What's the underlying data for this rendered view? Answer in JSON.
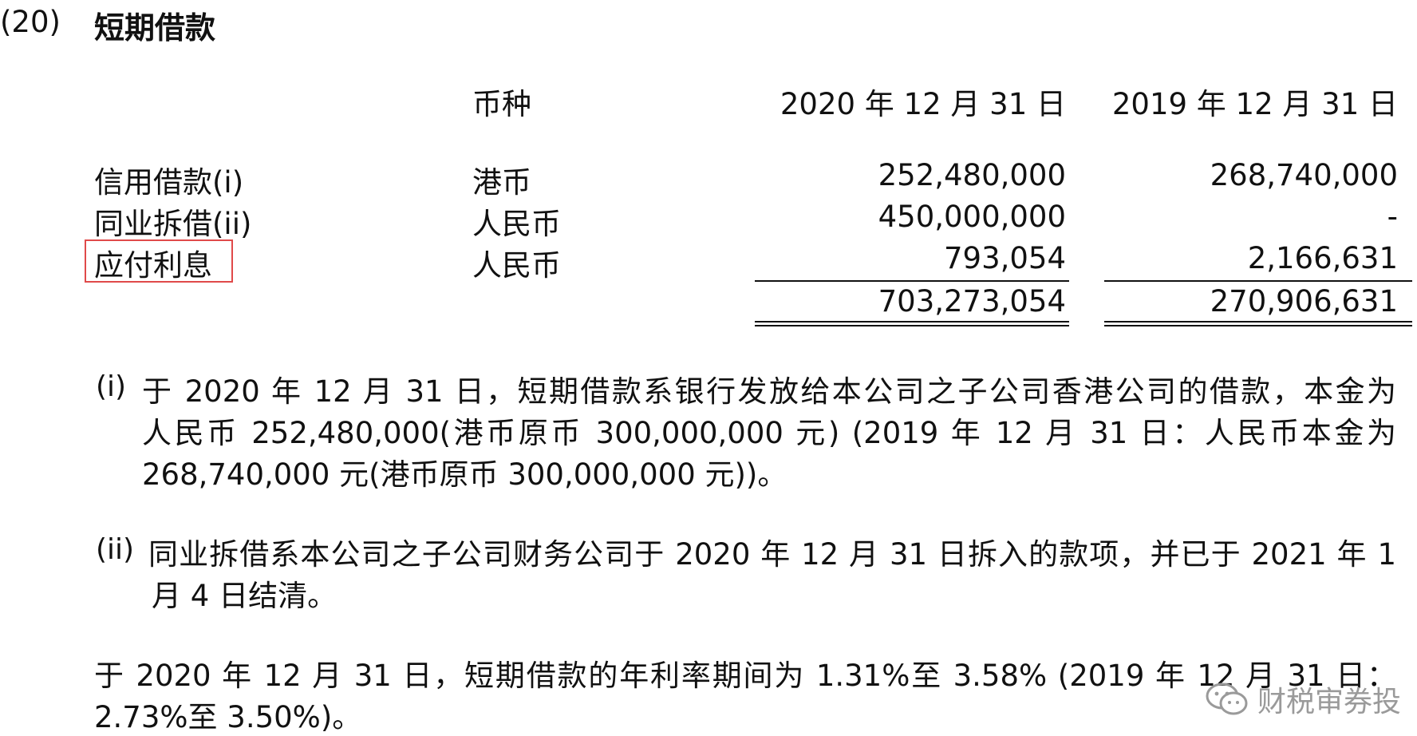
{
  "section": {
    "number": "(20)",
    "title": "短期借款"
  },
  "table": {
    "headers": {
      "currency": "币种",
      "col_2020": "2020 年 12 月 31 日",
      "col_2019": "2019 年 12 月 31 日"
    },
    "rows": [
      {
        "label": "信用借款(i)",
        "currency": "港币",
        "v2020": "252,480,000",
        "v2019": "268,740,000"
      },
      {
        "label": "同业拆借(ii)",
        "currency": "人民币",
        "v2020": "450,000,000",
        "v2019": "-"
      },
      {
        "label": "应付利息",
        "currency": "人民币",
        "v2020": "793,054",
        "v2019": "2,166,631"
      }
    ],
    "total": {
      "v2020": "703,273,054",
      "v2019": "270,906,631"
    },
    "highlight_color": "#e04a4a"
  },
  "notes": {
    "note_i": {
      "mark": "(i)",
      "line1": "于 2020 年 12 月 31 日，短期借款系银行发放给本公司之子公司香港公司的借款，本金为",
      "line2": "人民币 252,480,000(港币原币 300,000,000 元) (2019 年 12 月 31 日：人民币本金为",
      "line3": "268,740,000 元(港币原币 300,000,000 元))。"
    },
    "note_ii": {
      "mark": "(ii)",
      "line1": "同业拆借系本公司之子公司财务公司于 2020 年 12 月 31 日拆入的款项，并已于 2021 年 1",
      "line2": "月 4 日结清。"
    },
    "rate": {
      "line1": "于 2020 年 12 月 31 日，短期借款的年利率期间为 1.31%至 3.58% (2019 年 12 月 31 日：",
      "line2": "2.73%至 3.50%)。"
    }
  },
  "watermark": {
    "icon": "wechat-icon",
    "text": "财税审券投"
  }
}
